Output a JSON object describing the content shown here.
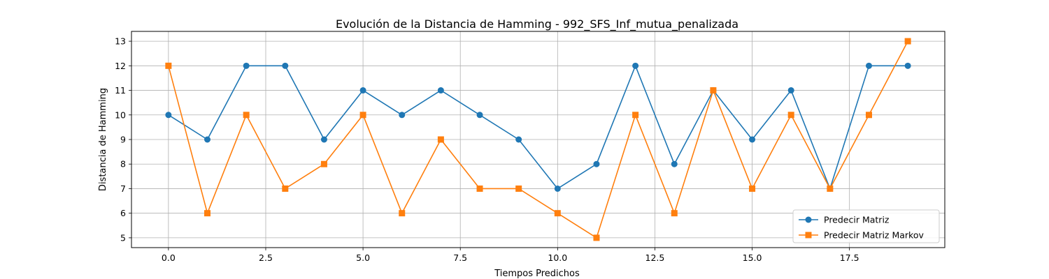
{
  "chart_data": {
    "type": "line",
    "title": "Evolución de la Distancia de Hamming - 992_SFS_Inf_mutua_penalizada",
    "xlabel": "Tiempos Predichos",
    "ylabel": "Distancia de Hamming",
    "x": [
      0,
      1,
      2,
      3,
      4,
      5,
      6,
      7,
      8,
      9,
      10,
      11,
      12,
      13,
      14,
      15,
      16,
      17,
      18,
      19
    ],
    "xlim": [
      -0.95,
      19.95
    ],
    "ylim": [
      4.6,
      13.4
    ],
    "xticks": [
      0.0,
      2.5,
      5.0,
      7.5,
      10.0,
      12.5,
      15.0,
      17.5
    ],
    "xtick_labels": [
      "0.0",
      "2.5",
      "5.0",
      "7.5",
      "10.0",
      "12.5",
      "15.0",
      "17.5"
    ],
    "yticks": [
      5,
      6,
      7,
      8,
      9,
      10,
      11,
      12,
      13
    ],
    "ytick_labels": [
      "5",
      "6",
      "7",
      "8",
      "9",
      "10",
      "11",
      "12",
      "13"
    ],
    "grid": true,
    "legend_position": "lower-right",
    "series": [
      {
        "name": "Predecir Matriz",
        "color": "#1f77b4",
        "marker": "circle",
        "values": [
          10,
          9,
          12,
          12,
          9,
          11,
          10,
          11,
          10,
          9,
          7,
          8,
          12,
          8,
          11,
          9,
          11,
          7,
          12,
          12
        ]
      },
      {
        "name": "Predecir Matriz Markov",
        "color": "#ff7f0e",
        "marker": "square",
        "values": [
          12,
          6,
          10,
          7,
          8,
          10,
          6,
          9,
          7,
          7,
          6,
          5,
          10,
          6,
          11,
          7,
          10,
          7,
          10,
          13
        ]
      }
    ]
  }
}
